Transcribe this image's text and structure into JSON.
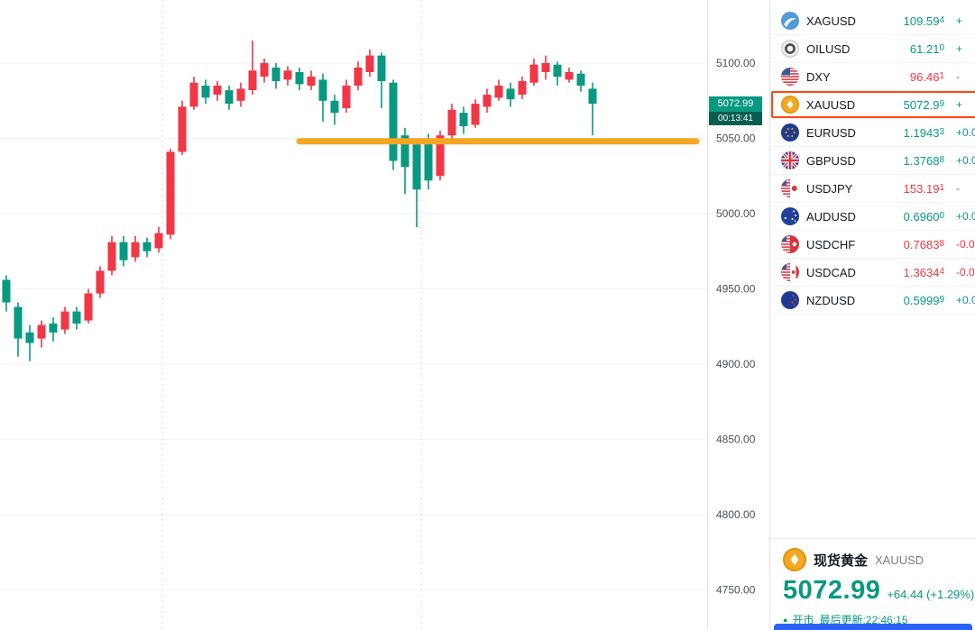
{
  "colors": {
    "text_up": "#089981",
    "text_down": "#f23645",
    "candle_up": "#f23645",
    "candle_down": "#089981",
    "accent_selected": "#ff4613",
    "price_label_bg": "#089981",
    "countdown_bg": "#075e50",
    "banner": "#2962ff",
    "grid": "#f0f2f7",
    "session_line": "#c9ced8",
    "axis_text": "#4a4e58"
  },
  "chart_data": {
    "type": "candlestick",
    "symbol": "XAUUSD",
    "y_axis": {
      "ticks": [
        5100,
        5050,
        5000,
        4950,
        4900,
        4850,
        4800,
        4750
      ],
      "decimals": 2
    },
    "grid": true,
    "session_breaks": [
      13.3,
      35.4
    ],
    "current_price": "5072.99",
    "countdown": "00:13:41",
    "trendline": {
      "type": "horizontal",
      "price": 5048,
      "color": "#f5a623"
    },
    "candles": [
      [
        4956,
        4959,
        4935,
        4941
      ],
      [
        4938,
        4941,
        4905,
        4917
      ],
      [
        4921,
        4926,
        4902,
        4914
      ],
      [
        4917,
        4929,
        4911,
        4926
      ],
      [
        4927,
        4931,
        4915,
        4921
      ],
      [
        4923,
        4938,
        4920,
        4935
      ],
      [
        4935,
        4938,
        4923,
        4927
      ],
      [
        4929,
        4950,
        4927,
        4947
      ],
      [
        4947,
        4965,
        4944,
        4962
      ],
      [
        4962,
        4985,
        4959,
        4981
      ],
      [
        4981,
        4985,
        4965,
        4969
      ],
      [
        4971,
        4985,
        4968,
        4981
      ],
      [
        4981,
        4984,
        4971,
        4975
      ],
      [
        4977,
        4991,
        4974,
        4987
      ],
      [
        4986,
        5043,
        4983,
        5041
      ],
      [
        5041,
        5075,
        5039,
        5071
      ],
      [
        5071,
        5091,
        5069,
        5087
      ],
      [
        5085,
        5089,
        5073,
        5077
      ],
      [
        5079,
        5088,
        5075,
        5085
      ],
      [
        5082,
        5085,
        5069,
        5073
      ],
      [
        5075,
        5087,
        5071,
        5083
      ],
      [
        5082,
        5115,
        5079,
        5095
      ],
      [
        5091,
        5103,
        5087,
        5100
      ],
      [
        5097,
        5100,
        5083,
        5088
      ],
      [
        5089,
        5098,
        5085,
        5095
      ],
      [
        5094,
        5097,
        5082,
        5086
      ],
      [
        5085,
        5095,
        5082,
        5091
      ],
      [
        5089,
        5093,
        5061,
        5075
      ],
      [
        5075,
        5079,
        5059,
        5067
      ],
      [
        5070,
        5089,
        5067,
        5085
      ],
      [
        5085,
        5101,
        5082,
        5097
      ],
      [
        5094,
        5109,
        5091,
        5105
      ],
      [
        5105,
        5107,
        5070,
        5088
      ],
      [
        5087,
        5089,
        5029,
        5035
      ],
      [
        5052,
        5057,
        5013,
        5031
      ],
      [
        5046,
        5049,
        4991,
        5016
      ],
      [
        5049,
        5053,
        5016,
        5022
      ],
      [
        5025,
        5055,
        5022,
        5052
      ],
      [
        5052,
        5073,
        5049,
        5069
      ],
      [
        5067,
        5071,
        5053,
        5058
      ],
      [
        5059,
        5076,
        5057,
        5073
      ],
      [
        5071,
        5083,
        5067,
        5079
      ],
      [
        5077,
        5089,
        5075,
        5085
      ],
      [
        5083,
        5087,
        5071,
        5076
      ],
      [
        5079,
        5091,
        5076,
        5088
      ],
      [
        5087,
        5103,
        5085,
        5099
      ],
      [
        5094,
        5105,
        5089,
        5100
      ],
      [
        5099,
        5101,
        5085,
        5091
      ],
      [
        5089,
        5097,
        5087,
        5094
      ],
      [
        5093,
        5095,
        5081,
        5085
      ],
      [
        5083,
        5087,
        5052,
        5073
      ]
    ]
  },
  "watchlist": {
    "rows": [
      {
        "symbol": "XAGUSD",
        "icon": "silver",
        "price": "109.59",
        "price_small": "4",
        "dir": "up",
        "change": "+"
      },
      {
        "symbol": "OILUSD",
        "icon": "oil",
        "price": "61.21",
        "price_small": "0",
        "dir": "up",
        "change": "+"
      },
      {
        "symbol": "DXY",
        "icon": "us",
        "price": "96.46",
        "price_small": "1",
        "dir": "down",
        "change": "-"
      },
      {
        "symbol": "XAUUSD",
        "icon": "gold",
        "price": "5072.9",
        "price_small": "9",
        "dir": "up",
        "change": "+",
        "selected": true
      },
      {
        "symbol": "EURUSD",
        "icon": "eu",
        "price": "1.1943",
        "price_small": "3",
        "dir": "up",
        "change": "+0.0"
      },
      {
        "symbol": "GBPUSD",
        "icon": "uk",
        "price": "1.3768",
        "price_small": "8",
        "dir": "up",
        "change": "+0.0"
      },
      {
        "symbol": "USDJPY",
        "icon": "usjp",
        "price": "153.19",
        "price_small": "1",
        "dir": "down",
        "change": "-"
      },
      {
        "symbol": "AUDUSD",
        "icon": "au",
        "price": "0.6960",
        "price_small": "0",
        "dir": "up",
        "change": "+0.0"
      },
      {
        "symbol": "USDCHF",
        "icon": "usch",
        "price": "0.7683",
        "price_small": "8",
        "dir": "down",
        "change": "-0.0"
      },
      {
        "symbol": "USDCAD",
        "icon": "usca",
        "price": "1.3634",
        "price_small": "4",
        "dir": "down",
        "change": "-0.0"
      },
      {
        "symbol": "NZDUSD",
        "icon": "nz",
        "price": "0.5999",
        "price_small": "9",
        "dir": "up",
        "change": "+0.0"
      }
    ]
  },
  "detail": {
    "name_cn": "现货黄金",
    "symbol": "XAUUSD",
    "price": "5072.99",
    "change": "+64.44 (+1.29%)",
    "status_dot": "●",
    "market_status": "开市",
    "last_update": "最后更新:22:46:15"
  }
}
